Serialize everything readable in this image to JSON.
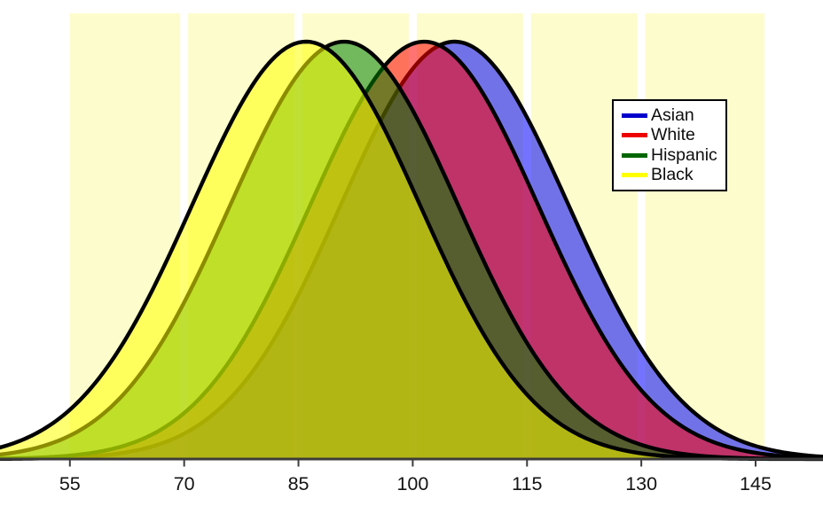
{
  "chart_data": {
    "type": "area",
    "title": "",
    "description": "Four overlapping normal (bell curve) distributions of IQ scores by group, equal spread and equal peak height, drawn as semi-transparent filled curves with black outlines",
    "xlabel": "",
    "ylabel": "",
    "x_ticks": [
      55,
      70,
      85,
      100,
      115,
      130,
      145
    ],
    "x_tick_labels": [
      "55",
      "70",
      "85",
      "100",
      "115",
      "130",
      "145"
    ],
    "xlim": [
      46,
      154
    ],
    "grid": "vertical white gridline bands at each x tick over pale yellow plot background",
    "plot_bg_color": "#fdfccc",
    "gridline_color": "#ffffff",
    "outline_color": "#000000",
    "fill_opacity": 0.55,
    "equal_peak_heights": true,
    "legend_position": "upper right",
    "series": [
      {
        "name": "Asian",
        "mean": 105.5,
        "sd": 15,
        "fill_color": "#0000ff",
        "legend_color": "#0000cc",
        "z_order": 1
      },
      {
        "name": "White",
        "mean": 101.5,
        "sd": 15,
        "fill_color": "#ff0000",
        "legend_color": "#ee0000",
        "z_order": 2
      },
      {
        "name": "Hispanic",
        "mean": 91,
        "sd": 15,
        "fill_color": "#008000",
        "legend_color": "#006600",
        "z_order": 3
      },
      {
        "name": "Black",
        "mean": 86,
        "sd": 15,
        "fill_color": "#ffff00",
        "legend_color": "#ffff00",
        "z_order": 4
      }
    ]
  },
  "legend": {
    "items": [
      {
        "label": "Asian",
        "color": "#0000cc"
      },
      {
        "label": "White",
        "color": "#ee0000"
      },
      {
        "label": "Hispanic",
        "color": "#006600"
      },
      {
        "label": "Black",
        "color": "#ffff00"
      }
    ]
  },
  "axis": {
    "line_color": "#3c3c3c",
    "tick_color": "#3c3c3c"
  }
}
